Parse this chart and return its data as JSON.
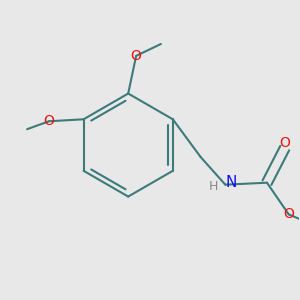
{
  "bg_color": "#e8e8e8",
  "bond_color": "#3d7a7a",
  "bond_width": 1.5,
  "atom_colors": {
    "O": "#ee1111",
    "N": "#1111ee",
    "C": "#303030",
    "H": "#888888"
  },
  "figsize": [
    3.0,
    3.0
  ]
}
